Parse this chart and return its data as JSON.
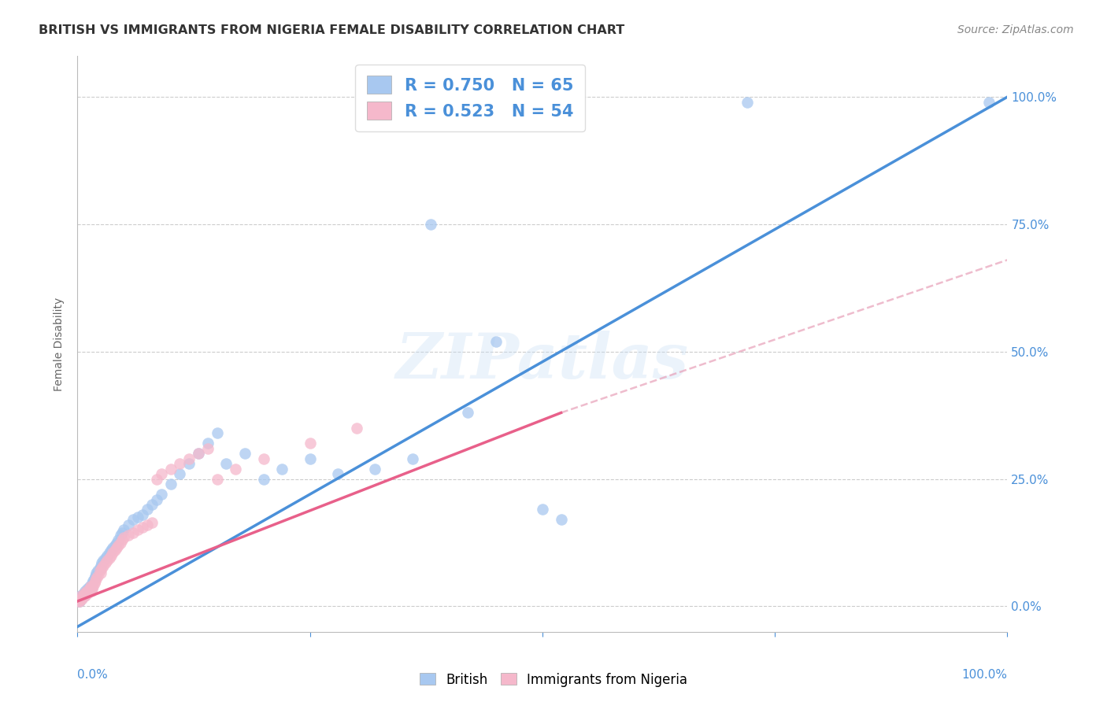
{
  "title": "BRITISH VS IMMIGRANTS FROM NIGERIA FEMALE DISABILITY CORRELATION CHART",
  "source": "Source: ZipAtlas.com",
  "ylabel": "Female Disability",
  "british_R": 0.75,
  "british_N": 65,
  "nigeria_R": 0.523,
  "nigeria_N": 54,
  "british_color": "#a8c8f0",
  "nigeria_color": "#f5b8cb",
  "british_line_color": "#4a90d9",
  "nigeria_line_color": "#e8608a",
  "nigeria_dash_color": "#e8a0b8",
  "watermark": "ZIPatlas",
  "british_line": [
    0.0,
    -0.04,
    1.0,
    1.0
  ],
  "nigeria_line_solid": [
    0.0,
    0.01,
    0.52,
    0.38
  ],
  "nigeria_line_dash": [
    0.52,
    0.38,
    1.0,
    0.68
  ],
  "british_points": [
    [
      0.001,
      0.01
    ],
    [
      0.002,
      0.01
    ],
    [
      0.003,
      0.02
    ],
    [
      0.004,
      0.015
    ],
    [
      0.005,
      0.02
    ],
    [
      0.006,
      0.025
    ],
    [
      0.007,
      0.02
    ],
    [
      0.008,
      0.03
    ],
    [
      0.009,
      0.025
    ],
    [
      0.01,
      0.03
    ],
    [
      0.011,
      0.035
    ],
    [
      0.012,
      0.03
    ],
    [
      0.013,
      0.04
    ],
    [
      0.014,
      0.035
    ],
    [
      0.015,
      0.04
    ],
    [
      0.016,
      0.045
    ],
    [
      0.017,
      0.05
    ],
    [
      0.018,
      0.055
    ],
    [
      0.019,
      0.06
    ],
    [
      0.02,
      0.065
    ],
    [
      0.022,
      0.07
    ],
    [
      0.024,
      0.075
    ],
    [
      0.025,
      0.08
    ],
    [
      0.026,
      0.085
    ],
    [
      0.028,
      0.09
    ],
    [
      0.03,
      0.095
    ],
    [
      0.032,
      0.1
    ],
    [
      0.034,
      0.105
    ],
    [
      0.036,
      0.11
    ],
    [
      0.038,
      0.115
    ],
    [
      0.04,
      0.12
    ],
    [
      0.042,
      0.125
    ],
    [
      0.044,
      0.13
    ],
    [
      0.046,
      0.14
    ],
    [
      0.048,
      0.145
    ],
    [
      0.05,
      0.15
    ],
    [
      0.055,
      0.16
    ],
    [
      0.06,
      0.17
    ],
    [
      0.065,
      0.175
    ],
    [
      0.07,
      0.18
    ],
    [
      0.075,
      0.19
    ],
    [
      0.08,
      0.2
    ],
    [
      0.085,
      0.21
    ],
    [
      0.09,
      0.22
    ],
    [
      0.1,
      0.24
    ],
    [
      0.11,
      0.26
    ],
    [
      0.12,
      0.28
    ],
    [
      0.13,
      0.3
    ],
    [
      0.14,
      0.32
    ],
    [
      0.15,
      0.34
    ],
    [
      0.16,
      0.28
    ],
    [
      0.18,
      0.3
    ],
    [
      0.2,
      0.25
    ],
    [
      0.22,
      0.27
    ],
    [
      0.25,
      0.29
    ],
    [
      0.28,
      0.26
    ],
    [
      0.32,
      0.27
    ],
    [
      0.36,
      0.29
    ],
    [
      0.42,
      0.38
    ],
    [
      0.45,
      0.52
    ],
    [
      0.5,
      0.19
    ],
    [
      0.52,
      0.17
    ],
    [
      0.38,
      0.75
    ],
    [
      0.72,
      0.99
    ],
    [
      0.98,
      0.99
    ]
  ],
  "nigeria_points": [
    [
      0.001,
      0.01
    ],
    [
      0.002,
      0.01
    ],
    [
      0.003,
      0.015
    ],
    [
      0.004,
      0.02
    ],
    [
      0.005,
      0.015
    ],
    [
      0.006,
      0.02
    ],
    [
      0.007,
      0.025
    ],
    [
      0.008,
      0.02
    ],
    [
      0.009,
      0.025
    ],
    [
      0.01,
      0.03
    ],
    [
      0.011,
      0.025
    ],
    [
      0.012,
      0.03
    ],
    [
      0.013,
      0.035
    ],
    [
      0.014,
      0.04
    ],
    [
      0.015,
      0.03
    ],
    [
      0.016,
      0.035
    ],
    [
      0.017,
      0.04
    ],
    [
      0.018,
      0.045
    ],
    [
      0.019,
      0.05
    ],
    [
      0.02,
      0.055
    ],
    [
      0.022,
      0.06
    ],
    [
      0.024,
      0.07
    ],
    [
      0.025,
      0.065
    ],
    [
      0.026,
      0.075
    ],
    [
      0.028,
      0.08
    ],
    [
      0.03,
      0.085
    ],
    [
      0.032,
      0.09
    ],
    [
      0.034,
      0.095
    ],
    [
      0.036,
      0.1
    ],
    [
      0.038,
      0.105
    ],
    [
      0.04,
      0.11
    ],
    [
      0.042,
      0.115
    ],
    [
      0.044,
      0.12
    ],
    [
      0.046,
      0.125
    ],
    [
      0.048,
      0.13
    ],
    [
      0.05,
      0.135
    ],
    [
      0.055,
      0.14
    ],
    [
      0.06,
      0.145
    ],
    [
      0.065,
      0.15
    ],
    [
      0.07,
      0.155
    ],
    [
      0.075,
      0.16
    ],
    [
      0.08,
      0.165
    ],
    [
      0.085,
      0.25
    ],
    [
      0.09,
      0.26
    ],
    [
      0.1,
      0.27
    ],
    [
      0.11,
      0.28
    ],
    [
      0.12,
      0.29
    ],
    [
      0.13,
      0.3
    ],
    [
      0.14,
      0.31
    ],
    [
      0.15,
      0.25
    ],
    [
      0.17,
      0.27
    ],
    [
      0.2,
      0.29
    ],
    [
      0.25,
      0.32
    ],
    [
      0.3,
      0.35
    ]
  ],
  "xlim": [
    0,
    1.0
  ],
  "ylim": [
    -0.05,
    1.08
  ]
}
